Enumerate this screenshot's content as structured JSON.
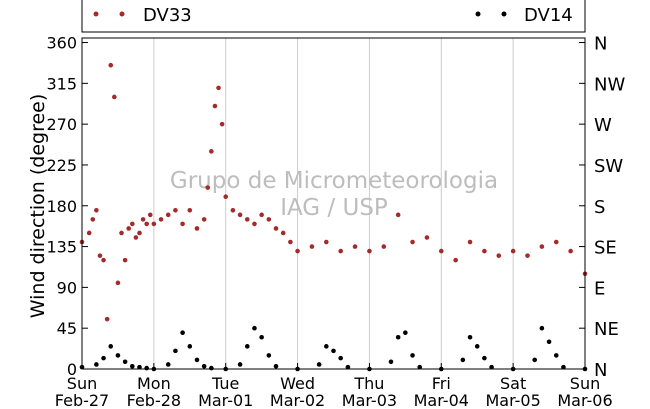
{
  "chart_data": {
    "type": "scatter",
    "ylabel": "Wind direction (degree)",
    "ylim": [
      0,
      365
    ],
    "yticks": [
      0,
      45,
      90,
      135,
      180,
      225,
      270,
      315,
      360
    ],
    "right_ticks": [
      {
        "value": 0,
        "label": "N"
      },
      {
        "value": 45,
        "label": "NE"
      },
      {
        "value": 90,
        "label": "E"
      },
      {
        "value": 135,
        "label": "SE"
      },
      {
        "value": 180,
        "label": "S"
      },
      {
        "value": 225,
        "label": "SW"
      },
      {
        "value": 270,
        "label": "W"
      },
      {
        "value": 315,
        "label": "NW"
      },
      {
        "value": 360,
        "label": "N"
      }
    ],
    "xlim": [
      "2011-02-27",
      "2011-03-06"
    ],
    "xticks": [
      {
        "day": "Sun",
        "date": "Feb-27"
      },
      {
        "day": "Mon",
        "date": "Feb-28"
      },
      {
        "day": "Tue",
        "date": "Mar-01"
      },
      {
        "day": "Wed",
        "date": "Mar-02"
      },
      {
        "day": "Thu",
        "date": "Mar-03"
      },
      {
        "day": "Fri",
        "date": "Mar-04"
      },
      {
        "day": "Sat",
        "date": "Mar-05"
      },
      {
        "day": "Sun",
        "date": "Mar-06"
      }
    ],
    "grid": "vertical",
    "legend_position": "top",
    "series": [
      {
        "name": "DV33",
        "color": "#a52a2a",
        "marker": "dot",
        "x_days": [
          0.0,
          0.1,
          0.15,
          0.2,
          0.25,
          0.3,
          0.35,
          0.4,
          0.45,
          0.5,
          0.55,
          0.6,
          0.65,
          0.7,
          0.75,
          0.8,
          0.85,
          0.9,
          0.95,
          1.0,
          1.1,
          1.2,
          1.3,
          1.4,
          1.5,
          1.6,
          1.7,
          1.75,
          1.8,
          1.85,
          1.9,
          1.95,
          2.0,
          2.1,
          2.2,
          2.3,
          2.4,
          2.5,
          2.6,
          2.7,
          2.8,
          2.9,
          3.0,
          3.2,
          3.4,
          3.6,
          3.8,
          4.0,
          4.2,
          4.4,
          4.6,
          4.8,
          5.0,
          5.2,
          5.4,
          5.6,
          5.8,
          6.0,
          6.2,
          6.4,
          6.6,
          6.8,
          7.0
        ],
        "y": [
          140,
          150,
          165,
          175,
          125,
          120,
          55,
          335,
          300,
          95,
          150,
          120,
          155,
          160,
          145,
          150,
          165,
          160,
          170,
          160,
          165,
          170,
          175,
          160,
          175,
          155,
          165,
          200,
          240,
          290,
          310,
          270,
          190,
          175,
          170,
          165,
          160,
          170,
          165,
          155,
          150,
          140,
          130,
          135,
          140,
          130,
          135,
          130,
          135,
          170,
          140,
          145,
          130,
          120,
          140,
          130,
          125,
          130,
          125,
          135,
          140,
          130,
          105
        ]
      },
      {
        "name": "DV14",
        "color": "#000000",
        "marker": "dot",
        "x_days": [
          0.0,
          0.2,
          0.3,
          0.4,
          0.5,
          0.6,
          0.7,
          0.8,
          0.9,
          1.0,
          1.2,
          1.3,
          1.4,
          1.5,
          1.6,
          1.7,
          1.8,
          2.0,
          2.2,
          2.3,
          2.4,
          2.5,
          2.6,
          2.7,
          3.0,
          3.3,
          3.4,
          3.5,
          3.6,
          3.7,
          4.0,
          4.3,
          4.4,
          4.5,
          4.6,
          4.7,
          5.0,
          5.3,
          5.4,
          5.5,
          5.6,
          5.7,
          6.0,
          6.3,
          6.4,
          6.5,
          6.6,
          6.7,
          7.0
        ],
        "y": [
          2,
          5,
          12,
          25,
          15,
          8,
          3,
          2,
          1,
          0,
          5,
          20,
          40,
          25,
          10,
          3,
          1,
          0,
          5,
          25,
          45,
          35,
          15,
          3,
          0,
          5,
          25,
          20,
          12,
          2,
          0,
          8,
          35,
          40,
          15,
          2,
          0,
          10,
          35,
          25,
          12,
          2,
          0,
          10,
          45,
          30,
          15,
          2,
          0
        ]
      }
    ],
    "watermark": [
      "Grupo de Micrometeorologia",
      "IAG / USP"
    ]
  }
}
